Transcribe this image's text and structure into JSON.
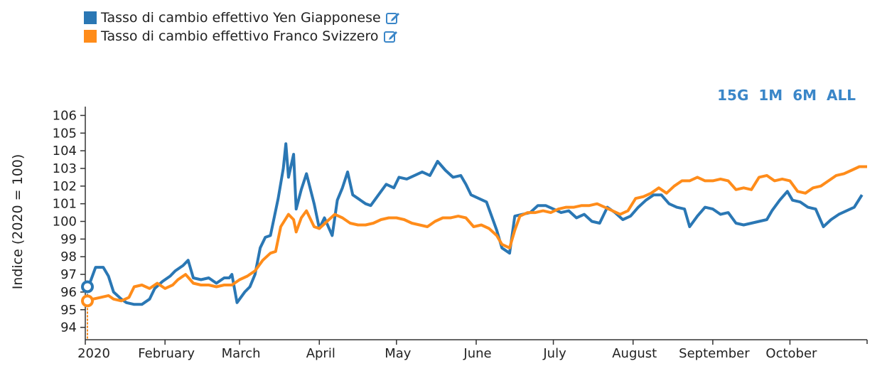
{
  "legend": {
    "series1_label": "Tasso di cambio effettivo Yen Giapponese",
    "series2_label": "Tasso di cambio effettivo Franco Svizzero"
  },
  "ranges": [
    "15G",
    "1M",
    "6M",
    "ALL"
  ],
  "colors": {
    "blue": "#2a77b4",
    "orange": "#ff8c1a",
    "accent": "#3a86c8"
  },
  "chart_data": {
    "type": "line",
    "ylabel": "Indice (2020 = 100)",
    "ylim": [
      93.3,
      106.5
    ],
    "yticks": [
      94,
      95,
      96,
      97,
      98,
      99,
      100,
      101,
      102,
      103,
      104,
      105,
      106
    ],
    "xlim": [
      "2020-01-01",
      "2020-10-31"
    ],
    "xticks": [
      {
        "label": "2020",
        "date": "2020-01-01"
      },
      {
        "label": "February",
        "date": "2020-02-01"
      },
      {
        "label": "March",
        "date": "2020-03-01"
      },
      {
        "label": "April",
        "date": "2020-04-01"
      },
      {
        "label": "May",
        "date": "2020-05-01"
      },
      {
        "label": "June",
        "date": "2020-06-01"
      },
      {
        "label": "July",
        "date": "2020-07-01"
      },
      {
        "label": "August",
        "date": "2020-08-01"
      },
      {
        "label": "September",
        "date": "2020-09-01"
      },
      {
        "label": "October",
        "date": "2020-10-01"
      }
    ],
    "series": [
      {
        "name": "Tasso di cambio effettivo Yen Giapponese",
        "color": "#2a77b4",
        "points": [
          [
            "2020-01-01",
            96.3
          ],
          [
            "2020-01-03",
            96.6
          ],
          [
            "2020-01-05",
            97.4
          ],
          [
            "2020-01-08",
            97.4
          ],
          [
            "2020-01-10",
            96.9
          ],
          [
            "2020-01-12",
            96.0
          ],
          [
            "2020-01-15",
            95.6
          ],
          [
            "2020-01-17",
            95.4
          ],
          [
            "2020-01-20",
            95.3
          ],
          [
            "2020-01-23",
            95.3
          ],
          [
            "2020-01-26",
            95.6
          ],
          [
            "2020-01-28",
            96.2
          ],
          [
            "2020-01-31",
            96.6
          ],
          [
            "2020-02-03",
            96.9
          ],
          [
            "2020-02-05",
            97.2
          ],
          [
            "2020-02-08",
            97.5
          ],
          [
            "2020-02-10",
            97.8
          ],
          [
            "2020-02-12",
            96.8
          ],
          [
            "2020-02-15",
            96.7
          ],
          [
            "2020-02-18",
            96.8
          ],
          [
            "2020-02-21",
            96.5
          ],
          [
            "2020-02-24",
            96.8
          ],
          [
            "2020-02-26",
            96.8
          ],
          [
            "2020-02-27",
            97.0
          ],
          [
            "2020-02-29",
            95.4
          ],
          [
            "2020-03-03",
            96.0
          ],
          [
            "2020-03-05",
            96.3
          ],
          [
            "2020-03-07",
            97.0
          ],
          [
            "2020-03-09",
            98.5
          ],
          [
            "2020-03-11",
            99.1
          ],
          [
            "2020-03-13",
            99.2
          ],
          [
            "2020-03-16",
            101.3
          ],
          [
            "2020-03-18",
            103.0
          ],
          [
            "2020-03-19",
            104.4
          ],
          [
            "2020-03-20",
            102.5
          ],
          [
            "2020-03-22",
            103.8
          ],
          [
            "2020-03-23",
            100.7
          ],
          [
            "2020-03-25",
            101.8
          ],
          [
            "2020-03-27",
            102.7
          ],
          [
            "2020-03-30",
            101.0
          ],
          [
            "2020-04-01",
            99.6
          ],
          [
            "2020-04-03",
            100.2
          ],
          [
            "2020-04-06",
            99.2
          ],
          [
            "2020-04-08",
            101.2
          ],
          [
            "2020-04-10",
            101.9
          ],
          [
            "2020-04-12",
            102.8
          ],
          [
            "2020-04-14",
            101.5
          ],
          [
            "2020-04-16",
            101.3
          ],
          [
            "2020-04-19",
            101.0
          ],
          [
            "2020-04-21",
            100.9
          ],
          [
            "2020-04-24",
            101.5
          ],
          [
            "2020-04-27",
            102.1
          ],
          [
            "2020-04-30",
            101.9
          ],
          [
            "2020-05-02",
            102.5
          ],
          [
            "2020-05-05",
            102.4
          ],
          [
            "2020-05-08",
            102.6
          ],
          [
            "2020-05-11",
            102.8
          ],
          [
            "2020-05-14",
            102.6
          ],
          [
            "2020-05-17",
            103.4
          ],
          [
            "2020-05-20",
            102.9
          ],
          [
            "2020-05-23",
            102.5
          ],
          [
            "2020-05-26",
            102.6
          ],
          [
            "2020-05-28",
            102.1
          ],
          [
            "2020-05-30",
            101.5
          ],
          [
            "2020-06-02",
            101.3
          ],
          [
            "2020-06-05",
            101.1
          ],
          [
            "2020-06-07",
            100.3
          ],
          [
            "2020-06-09",
            99.5
          ],
          [
            "2020-06-11",
            98.5
          ],
          [
            "2020-06-14",
            98.2
          ],
          [
            "2020-06-16",
            100.3
          ],
          [
            "2020-06-19",
            100.4
          ],
          [
            "2020-06-22",
            100.5
          ],
          [
            "2020-06-25",
            100.9
          ],
          [
            "2020-06-28",
            100.9
          ],
          [
            "2020-07-01",
            100.7
          ],
          [
            "2020-07-04",
            100.5
          ],
          [
            "2020-07-07",
            100.6
          ],
          [
            "2020-07-10",
            100.2
          ],
          [
            "2020-07-13",
            100.4
          ],
          [
            "2020-07-16",
            100.0
          ],
          [
            "2020-07-19",
            99.9
          ],
          [
            "2020-07-22",
            100.8
          ],
          [
            "2020-07-25",
            100.5
          ],
          [
            "2020-07-28",
            100.1
          ],
          [
            "2020-07-31",
            100.3
          ],
          [
            "2020-08-03",
            100.8
          ],
          [
            "2020-08-06",
            101.2
          ],
          [
            "2020-08-09",
            101.5
          ],
          [
            "2020-08-12",
            101.5
          ],
          [
            "2020-08-15",
            101.0
          ],
          [
            "2020-08-18",
            100.8
          ],
          [
            "2020-08-21",
            100.7
          ],
          [
            "2020-08-23",
            99.7
          ],
          [
            "2020-08-26",
            100.3
          ],
          [
            "2020-08-29",
            100.8
          ],
          [
            "2020-09-01",
            100.7
          ],
          [
            "2020-09-04",
            100.4
          ],
          [
            "2020-09-07",
            100.5
          ],
          [
            "2020-09-10",
            99.9
          ],
          [
            "2020-09-13",
            99.8
          ],
          [
            "2020-09-16",
            99.9
          ],
          [
            "2020-09-19",
            100.0
          ],
          [
            "2020-09-22",
            100.1
          ],
          [
            "2020-09-24",
            100.6
          ],
          [
            "2020-09-27",
            101.2
          ],
          [
            "2020-09-30",
            101.7
          ],
          [
            "2020-10-02",
            101.2
          ],
          [
            "2020-10-05",
            101.1
          ],
          [
            "2020-10-08",
            100.8
          ],
          [
            "2020-10-11",
            100.7
          ],
          [
            "2020-10-14",
            99.7
          ],
          [
            "2020-10-17",
            100.1
          ],
          [
            "2020-10-20",
            100.4
          ],
          [
            "2020-10-23",
            100.6
          ],
          [
            "2020-10-26",
            100.8
          ],
          [
            "2020-10-29",
            101.5
          ]
        ]
      },
      {
        "name": "Tasso di cambio effettivo Franco Svizzero",
        "color": "#ff8c1a",
        "points": [
          [
            "2020-01-01",
            95.5
          ],
          [
            "2020-01-04",
            95.6
          ],
          [
            "2020-01-07",
            95.7
          ],
          [
            "2020-01-10",
            95.8
          ],
          [
            "2020-01-12",
            95.6
          ],
          [
            "2020-01-15",
            95.5
          ],
          [
            "2020-01-18",
            95.7
          ],
          [
            "2020-01-20",
            96.3
          ],
          [
            "2020-01-23",
            96.4
          ],
          [
            "2020-01-26",
            96.2
          ],
          [
            "2020-01-29",
            96.5
          ],
          [
            "2020-02-01",
            96.2
          ],
          [
            "2020-02-04",
            96.4
          ],
          [
            "2020-02-06",
            96.7
          ],
          [
            "2020-02-09",
            97.0
          ],
          [
            "2020-02-12",
            96.5
          ],
          [
            "2020-02-15",
            96.4
          ],
          [
            "2020-02-18",
            96.4
          ],
          [
            "2020-02-21",
            96.3
          ],
          [
            "2020-02-24",
            96.4
          ],
          [
            "2020-02-27",
            96.4
          ],
          [
            "2020-03-01",
            96.7
          ],
          [
            "2020-03-04",
            96.9
          ],
          [
            "2020-03-07",
            97.2
          ],
          [
            "2020-03-10",
            97.8
          ],
          [
            "2020-03-13",
            98.2
          ],
          [
            "2020-03-15",
            98.3
          ],
          [
            "2020-03-17",
            99.7
          ],
          [
            "2020-03-20",
            100.4
          ],
          [
            "2020-03-22",
            100.1
          ],
          [
            "2020-03-23",
            99.4
          ],
          [
            "2020-03-25",
            100.2
          ],
          [
            "2020-03-27",
            100.6
          ],
          [
            "2020-03-30",
            99.7
          ],
          [
            "2020-04-01",
            99.6
          ],
          [
            "2020-04-04",
            100.0
          ],
          [
            "2020-04-07",
            100.4
          ],
          [
            "2020-04-10",
            100.2
          ],
          [
            "2020-04-13",
            99.9
          ],
          [
            "2020-04-16",
            99.8
          ],
          [
            "2020-04-19",
            99.8
          ],
          [
            "2020-04-22",
            99.9
          ],
          [
            "2020-04-25",
            100.1
          ],
          [
            "2020-04-28",
            100.2
          ],
          [
            "2020-05-01",
            100.2
          ],
          [
            "2020-05-04",
            100.1
          ],
          [
            "2020-05-07",
            99.9
          ],
          [
            "2020-05-10",
            99.8
          ],
          [
            "2020-05-13",
            99.7
          ],
          [
            "2020-05-16",
            100.0
          ],
          [
            "2020-05-19",
            100.2
          ],
          [
            "2020-05-22",
            100.2
          ],
          [
            "2020-05-25",
            100.3
          ],
          [
            "2020-05-28",
            100.2
          ],
          [
            "2020-05-31",
            99.7
          ],
          [
            "2020-06-03",
            99.8
          ],
          [
            "2020-06-06",
            99.6
          ],
          [
            "2020-06-09",
            99.2
          ],
          [
            "2020-06-11",
            98.7
          ],
          [
            "2020-06-14",
            98.5
          ],
          [
            "2020-06-16",
            99.5
          ],
          [
            "2020-06-18",
            100.3
          ],
          [
            "2020-06-21",
            100.5
          ],
          [
            "2020-06-24",
            100.5
          ],
          [
            "2020-06-27",
            100.6
          ],
          [
            "2020-06-30",
            100.5
          ],
          [
            "2020-07-03",
            100.7
          ],
          [
            "2020-07-06",
            100.8
          ],
          [
            "2020-07-09",
            100.8
          ],
          [
            "2020-07-12",
            100.9
          ],
          [
            "2020-07-15",
            100.9
          ],
          [
            "2020-07-18",
            101.0
          ],
          [
            "2020-07-21",
            100.8
          ],
          [
            "2020-07-24",
            100.6
          ],
          [
            "2020-07-27",
            100.4
          ],
          [
            "2020-07-30",
            100.6
          ],
          [
            "2020-08-02",
            101.3
          ],
          [
            "2020-08-05",
            101.4
          ],
          [
            "2020-08-08",
            101.6
          ],
          [
            "2020-08-11",
            101.9
          ],
          [
            "2020-08-14",
            101.6
          ],
          [
            "2020-08-17",
            102.0
          ],
          [
            "2020-08-20",
            102.3
          ],
          [
            "2020-08-23",
            102.3
          ],
          [
            "2020-08-26",
            102.5
          ],
          [
            "2020-08-29",
            102.3
          ],
          [
            "2020-09-01",
            102.3
          ],
          [
            "2020-09-04",
            102.4
          ],
          [
            "2020-09-07",
            102.3
          ],
          [
            "2020-09-10",
            101.8
          ],
          [
            "2020-09-13",
            101.9
          ],
          [
            "2020-09-16",
            101.8
          ],
          [
            "2020-09-19",
            102.5
          ],
          [
            "2020-09-22",
            102.6
          ],
          [
            "2020-09-25",
            102.3
          ],
          [
            "2020-09-28",
            102.4
          ],
          [
            "2020-10-01",
            102.3
          ],
          [
            "2020-10-04",
            101.7
          ],
          [
            "2020-10-07",
            101.6
          ],
          [
            "2020-10-10",
            101.9
          ],
          [
            "2020-10-13",
            102.0
          ],
          [
            "2020-10-16",
            102.3
          ],
          [
            "2020-10-19",
            102.6
          ],
          [
            "2020-10-22",
            102.7
          ],
          [
            "2020-10-25",
            102.9
          ],
          [
            "2020-10-28",
            103.1
          ],
          [
            "2020-10-31",
            103.1
          ]
        ]
      }
    ]
  }
}
